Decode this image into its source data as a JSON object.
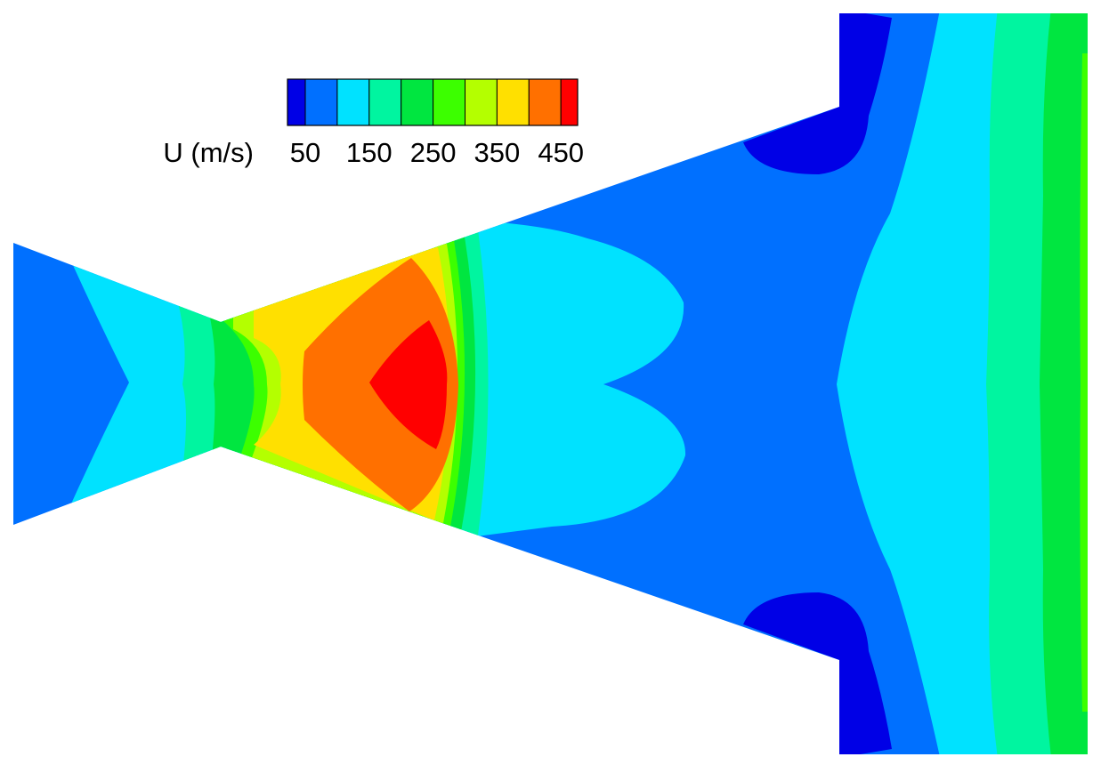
{
  "chart_data": {
    "type": "contour",
    "colorbar_label": "U (m/s)",
    "levels": [
      50,
      100,
      150,
      200,
      250,
      300,
      350,
      400,
      450
    ],
    "colors": [
      "#0000e6",
      "#0070ff",
      "#00e2ff",
      "#00f5a0",
      "#00e640",
      "#3cff00",
      "#b4ff00",
      "#ffe000",
      "#ff7000",
      "#ff0000"
    ],
    "ticks": [
      50,
      150,
      250,
      350,
      450
    ]
  }
}
